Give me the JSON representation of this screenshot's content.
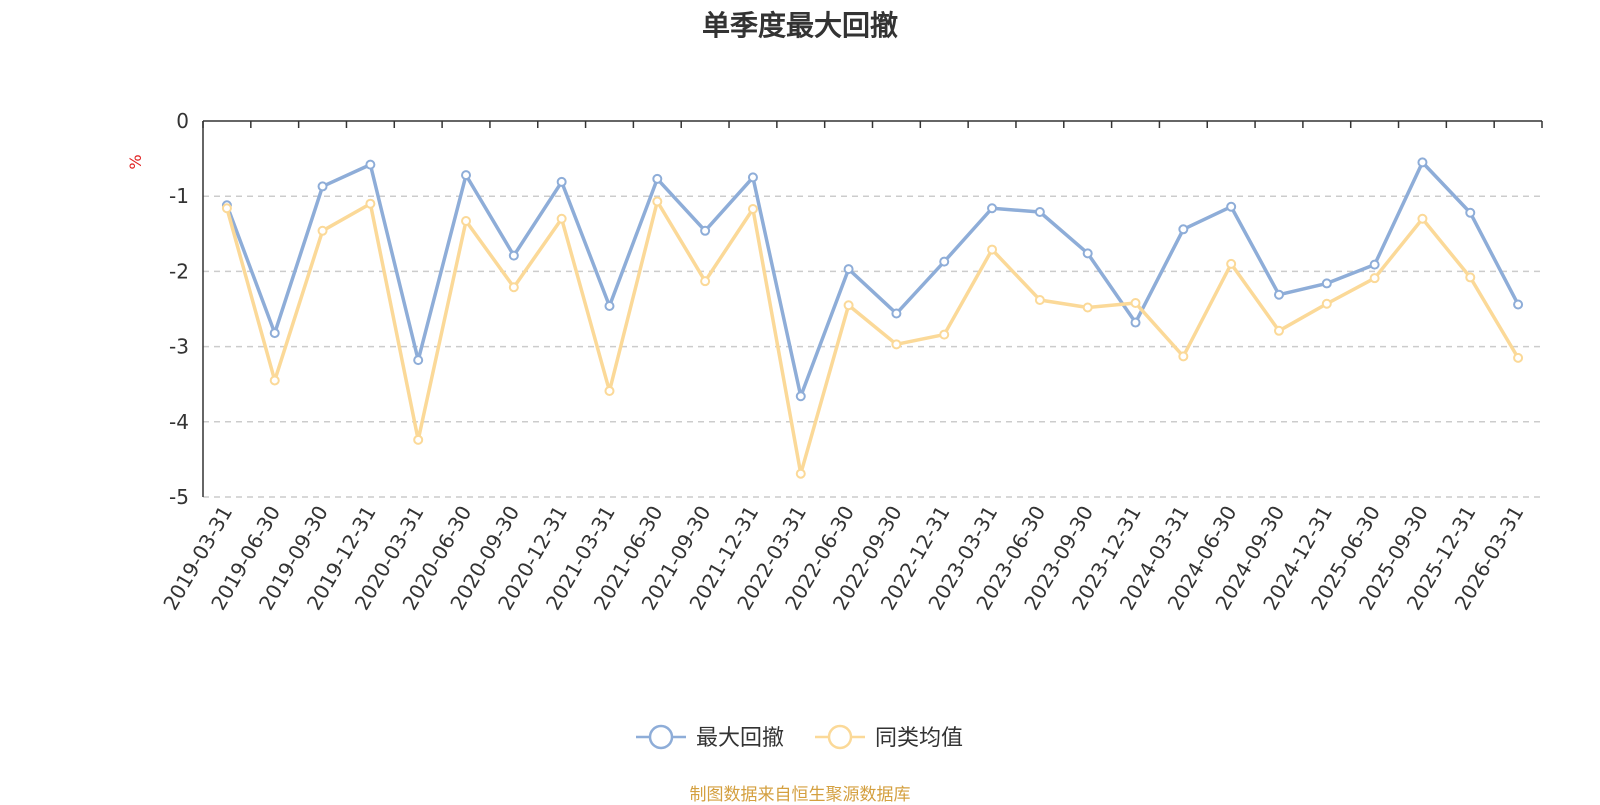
{
  "chart_data": {
    "type": "line",
    "title": "单季度最大回撤",
    "ylabel": "%",
    "ylim": [
      -5,
      0
    ],
    "yticks": [
      0,
      -1,
      -2,
      -3,
      -4,
      -5
    ],
    "grid": true,
    "legend_position": "bottom-center",
    "categories": [
      "2019-03-31",
      "2019-06-30",
      "2019-09-30",
      "2019-12-31",
      "2020-03-31",
      "2020-06-30",
      "2020-09-30",
      "2020-12-31",
      "2021-03-31",
      "2021-06-30",
      "2021-09-30",
      "2021-12-31",
      "2022-03-31",
      "2022-06-30",
      "2022-09-30",
      "2022-12-31",
      "2023-03-31",
      "2023-06-30",
      "2023-09-30",
      "2023-12-31",
      "2024-03-31",
      "2024-06-30",
      "2024-09-30",
      "2024-12-31",
      "2025-06-30",
      "2025-09-30",
      "2025-12-31",
      "2026-03-31"
    ],
    "series": [
      {
        "name": "最大回撤",
        "color": "#8eadd8",
        "values": [
          -1.12,
          -2.82,
          -0.87,
          -0.58,
          -3.18,
          -0.72,
          -1.79,
          -0.81,
          -2.46,
          -0.77,
          -1.46,
          -0.75,
          -3.66,
          -1.97,
          -2.56,
          -1.87,
          -1.16,
          -1.21,
          -1.76,
          -2.68,
          -1.44,
          -1.14,
          -2.31,
          -2.16,
          -1.91,
          -0.55,
          -1.22,
          -2.44
        ]
      },
      {
        "name": "同类均值",
        "color": "#fbd998",
        "values": [
          -1.16,
          -3.45,
          -1.46,
          -1.1,
          -4.24,
          -1.33,
          -2.21,
          -1.3,
          -3.59,
          -1.07,
          -2.13,
          -1.17,
          -4.69,
          -2.45,
          -2.97,
          -2.84,
          -1.71,
          -2.38,
          -2.48,
          -2.42,
          -3.13,
          -1.9,
          -2.79,
          -2.43,
          -2.09,
          -1.3,
          -2.08,
          -3.15
        ]
      }
    ]
  },
  "source_note": "制图数据来自恒生聚源数据库"
}
